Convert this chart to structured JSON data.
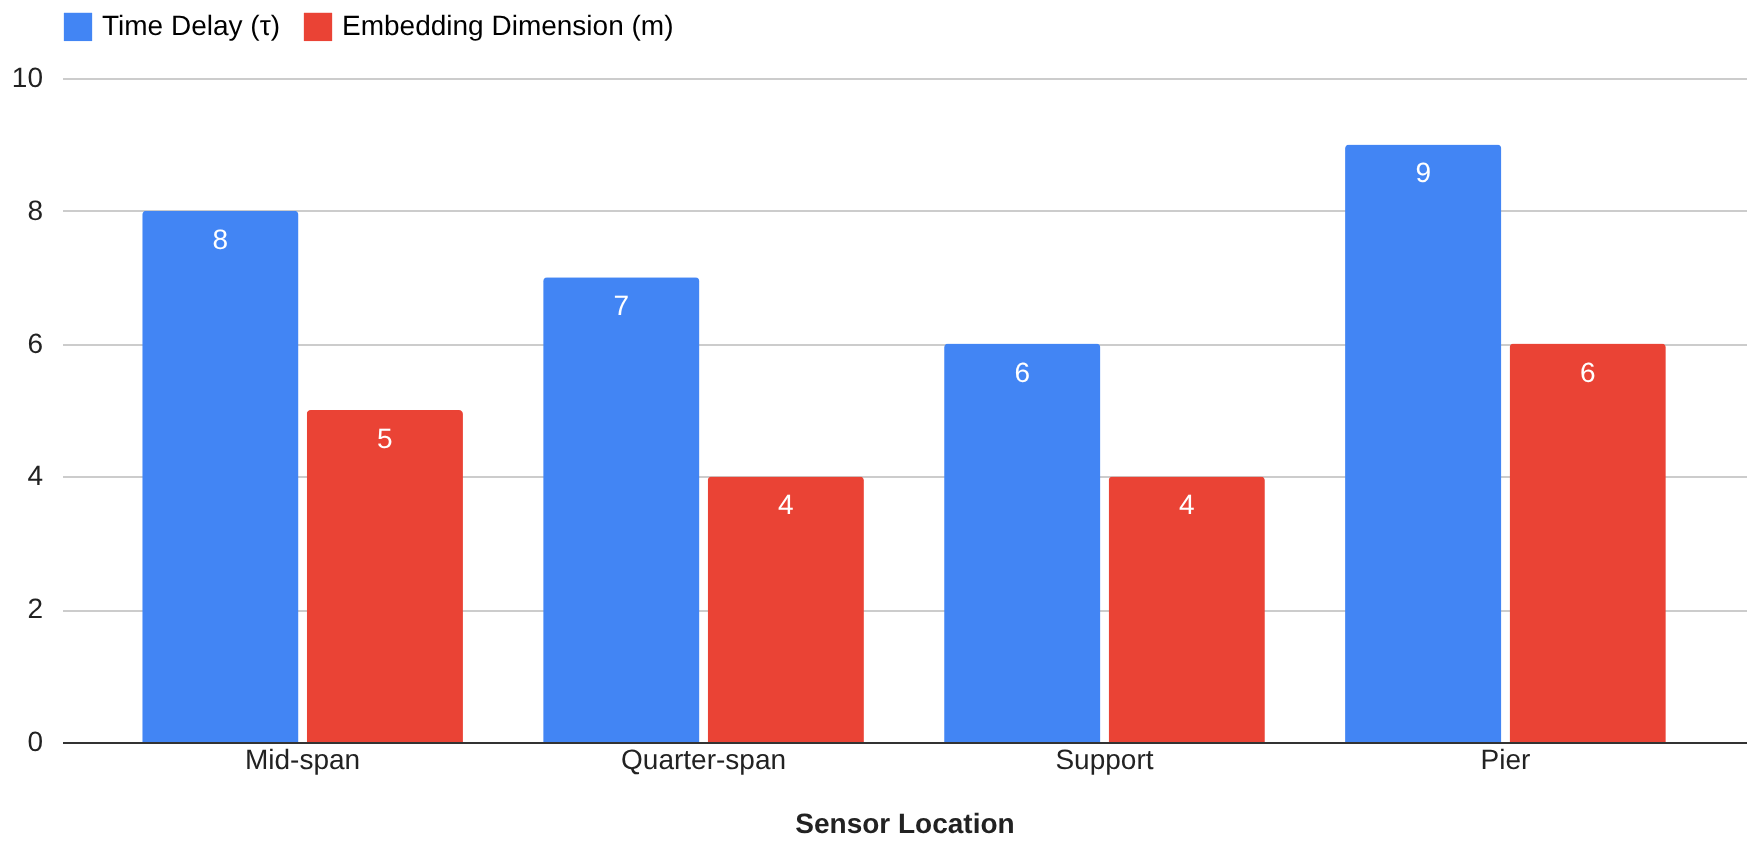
{
  "chart_data": {
    "type": "bar",
    "xlabel": "Sensor Location",
    "categories": [
      "Mid-span",
      "Quarter-span",
      "Support",
      "Pier"
    ],
    "series": [
      {
        "name": "Time Delay (τ)",
        "color": "#4285f4",
        "values": [
          8,
          7,
          6,
          9
        ]
      },
      {
        "name": "Embedding Dimension (m)",
        "color": "#ea4335",
        "values": [
          5,
          4,
          4,
          6
        ]
      }
    ],
    "ylim": [
      0,
      10
    ],
    "yticks": [
      0,
      2,
      4,
      6,
      8,
      10
    ],
    "grid": "y",
    "legend": "top",
    "data_labels": true
  }
}
